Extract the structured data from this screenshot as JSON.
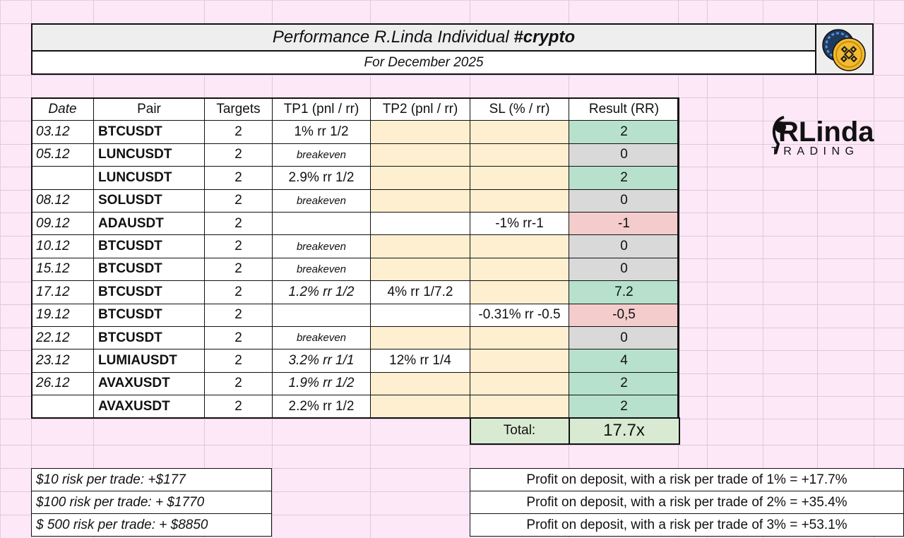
{
  "header": {
    "title_prefix": "Performance R.Linda Individual ",
    "title_tag": "#crypto",
    "subtitle": "For December 2025",
    "logo_icon": "binance-coin-icon"
  },
  "brand": {
    "name": "RLinda",
    "tagline": "TRADING"
  },
  "table": {
    "headers": {
      "date": "Date",
      "pair": "Pair",
      "targets": "Targets",
      "tp1": "TP1 (pnl / rr)",
      "tp2": "TP2 (pnl / rr)",
      "sl": "SL (% / rr)",
      "result": "Result (RR)"
    },
    "rows": [
      {
        "date": "03.12",
        "pair": "BTCUSDT",
        "targets": "2",
        "tp1": "1% rr 1/2",
        "tp2": "",
        "sl": "",
        "result": "2"
      },
      {
        "date": "05.12",
        "pair": "LUNCUSDT",
        "targets": "2",
        "tp1": "breakeven",
        "tp2": "",
        "sl": "",
        "result": "0"
      },
      {
        "date": "",
        "pair": "LUNCUSDT",
        "targets": "2",
        "tp1": "2.9% rr 1/2",
        "tp2": "",
        "sl": "",
        "result": "2"
      },
      {
        "date": "08.12",
        "pair": "SOLUSDT",
        "targets": "2",
        "tp1": "breakeven",
        "tp2": "",
        "sl": "",
        "result": "0"
      },
      {
        "date": "09.12",
        "pair": "ADAUSDT",
        "targets": "2",
        "tp1": "",
        "tp2": "",
        "sl": "-1% rr-1",
        "result": "-1"
      },
      {
        "date": "10.12",
        "pair": "BTCUSDT",
        "targets": "2",
        "tp1": "breakeven",
        "tp2": "",
        "sl": "",
        "result": "0"
      },
      {
        "date": "15.12",
        "pair": "BTCUSDT",
        "targets": "2",
        "tp1": "breakeven",
        "tp2": "",
        "sl": "",
        "result": "0"
      },
      {
        "date": "17.12",
        "pair": "BTCUSDT",
        "targets": "2",
        "tp1": "1.2% rr 1/2",
        "tp2": "4% rr 1/7.2",
        "sl": "",
        "result": "7.2"
      },
      {
        "date": "19.12",
        "pair": "BTCUSDT",
        "targets": "2",
        "tp1": "",
        "tp2": "",
        "sl": "-0.31% rr -0.5",
        "result": "-0,5"
      },
      {
        "date": "22.12",
        "pair": "BTCUSDT",
        "targets": "2",
        "tp1": "breakeven",
        "tp2": "",
        "sl": "",
        "result": "0"
      },
      {
        "date": "23.12",
        "pair": "LUMIAUSDT",
        "targets": "2",
        "tp1": "3.2% rr 1/1",
        "tp2": "12% rr 1/4",
        "sl": "",
        "result": "4"
      },
      {
        "date": "26.12",
        "pair": "AVAXUSDT",
        "targets": "2",
        "tp1": "1.9% rr 1/2",
        "tp2": "",
        "sl": "",
        "result": "2"
      },
      {
        "date": "",
        "pair": "AVAXUSDT",
        "targets": "2",
        "tp1": "2.2% rr 1/2",
        "tp2": "",
        "sl": "",
        "result": "2"
      }
    ],
    "total_label": "Total:",
    "total_value": "17.7x"
  },
  "risk_examples": [
    "$10 risk per trade: +$177",
    "$100 risk per trade: + $1770",
    "$ 500 risk per trade: + $8850"
  ],
  "deposit_profit": [
    "Profit on deposit, with a risk per trade of 1% = +17.7%",
    "Profit on deposit, with a risk per trade of 2% = +35.4%",
    "Profit on deposit, with a risk per trade of 3% = +53.1%"
  ],
  "colors": {
    "background": "#fde8f7",
    "profit": "#b7e1cd",
    "loss": "#f4cccc",
    "neutral": "#d9d9d9",
    "empty_target": "#fdefd0",
    "total": "#d9ead3"
  }
}
